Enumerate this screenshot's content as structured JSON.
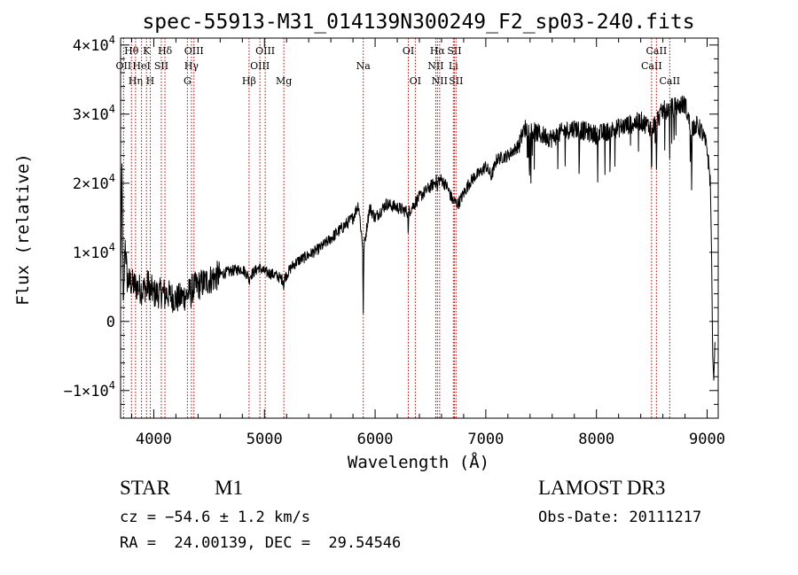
{
  "colors": {
    "axis": "#000000",
    "spectrum": "#000000",
    "line_marker": "#c00000",
    "background": "#ffffff"
  },
  "chart_data": {
    "type": "line",
    "title": "spec-55913-M31_014139N300249_F2_sp03-240.fits",
    "xlabel": "Wavelength (Å)",
    "ylabel": "Flux (relative)",
    "xlim": [
      3700,
      9100
    ],
    "ylim": [
      -14000,
      41000
    ],
    "x_ticks": [
      4000,
      5000,
      6000,
      7000,
      8000,
      9000
    ],
    "x_tick_labels": [
      "4000",
      "5000",
      "6000",
      "7000",
      "8000",
      "9000"
    ],
    "x_minor_step": 200,
    "y_ticks": [
      {
        "value": -10000,
        "mantissa": "−1×10",
        "exp": "4"
      },
      {
        "value": 0,
        "mantissa": "0",
        "exp": ""
      },
      {
        "value": 10000,
        "mantissa": "1×10",
        "exp": "4"
      },
      {
        "value": 20000,
        "mantissa": "2×10",
        "exp": "4"
      },
      {
        "value": 30000,
        "mantissa": "3×10",
        "exp": "4"
      },
      {
        "value": 40000,
        "mantissa": "4×10",
        "exp": "4"
      }
    ],
    "y_minor_step": 2000,
    "grid": false,
    "spectrum_anchors": [
      [
        3700,
        4000
      ],
      [
        3712,
        22000
      ],
      [
        3725,
        500
      ],
      [
        3740,
        12000
      ],
      [
        3760,
        6000
      ],
      [
        3800,
        5500
      ],
      [
        3850,
        5000
      ],
      [
        3900,
        4500
      ],
      [
        3950,
        5500
      ],
      [
        4000,
        4000
      ],
      [
        4100,
        4200
      ],
      [
        4200,
        3200
      ],
      [
        4300,
        3800
      ],
      [
        4350,
        4800
      ],
      [
        4400,
        5200
      ],
      [
        4500,
        6000
      ],
      [
        4600,
        6800
      ],
      [
        4700,
        7300
      ],
      [
        4800,
        7600
      ],
      [
        4860,
        6500
      ],
      [
        4950,
        7800
      ],
      [
        5000,
        7200
      ],
      [
        5100,
        6700
      ],
      [
        5170,
        6000
      ],
      [
        5250,
        8000
      ],
      [
        5300,
        8700
      ],
      [
        5400,
        9600
      ],
      [
        5500,
        10600
      ],
      [
        5600,
        12000
      ],
      [
        5700,
        13500
      ],
      [
        5800,
        15000
      ],
      [
        5850,
        17000
      ],
      [
        5893,
        10000
      ],
      [
        5950,
        16500
      ],
      [
        6000,
        15000
      ],
      [
        6100,
        17000
      ],
      [
        6200,
        16500
      ],
      [
        6300,
        15800
      ],
      [
        6400,
        18000
      ],
      [
        6500,
        19500
      ],
      [
        6563,
        20500
      ],
      [
        6600,
        20500
      ],
      [
        6650,
        19500
      ],
      [
        6700,
        17500
      ],
      [
        6750,
        17000
      ],
      [
        6800,
        18500
      ],
      [
        6850,
        20000
      ],
      [
        6900,
        21000
      ],
      [
        6950,
        21500
      ],
      [
        7000,
        22500
      ],
      [
        7050,
        21000
      ],
      [
        7100,
        23500
      ],
      [
        7200,
        24000
      ],
      [
        7300,
        25500
      ],
      [
        7350,
        28000
      ],
      [
        7500,
        27000
      ],
      [
        7600,
        26500
      ],
      [
        7700,
        27500
      ],
      [
        7800,
        28000
      ],
      [
        7900,
        27500
      ],
      [
        8000,
        27000
      ],
      [
        8100,
        27500
      ],
      [
        8200,
        28000
      ],
      [
        8300,
        28500
      ],
      [
        8400,
        29000
      ],
      [
        8500,
        28000
      ],
      [
        8600,
        30500
      ],
      [
        8700,
        31000
      ],
      [
        8800,
        31500
      ],
      [
        8850,
        28000
      ],
      [
        8900,
        28500
      ],
      [
        8950,
        27500
      ],
      [
        9000,
        25000
      ],
      [
        9030,
        20000
      ]
    ],
    "spectrum_dips": [
      [
        3934,
        1200
      ],
      [
        3968,
        1800
      ],
      [
        4101,
        1000
      ],
      [
        4340,
        1500
      ],
      [
        4861,
        900
      ],
      [
        5175,
        1200
      ],
      [
        5893,
        9000
      ],
      [
        6300,
        3500
      ],
      [
        6563,
        2000
      ],
      [
        8498,
        7000
      ],
      [
        8542,
        8000
      ],
      [
        8662,
        6000
      ],
      [
        8700,
        4000
      ],
      [
        8860,
        9000
      ]
    ],
    "spectrum_tail": [
      [
        9040,
        10000
      ],
      [
        9050,
        -5000
      ],
      [
        9060,
        -8500
      ],
      [
        9070,
        -3000
      ]
    ],
    "lines": [
      {
        "label": "OII",
        "x": 3727,
        "row": 1
      },
      {
        "label": "Hθ",
        "x": 3798,
        "row": 0
      },
      {
        "label": "Hη",
        "x": 3835,
        "row": 2
      },
      {
        "label": "HeI",
        "x": 3889,
        "row": 1
      },
      {
        "label": "K",
        "x": 3934,
        "row": 0
      },
      {
        "label": "H",
        "x": 3968,
        "row": 2
      },
      {
        "label": "SII",
        "x": 4068,
        "row": 1
      },
      {
        "label": "Hδ",
        "x": 4101,
        "row": 0
      },
      {
        "label": "G",
        "x": 4304,
        "row": 2
      },
      {
        "label": "Hγ",
        "x": 4340,
        "row": 1
      },
      {
        "label": "OIII",
        "x": 4363,
        "row": 0
      },
      {
        "label": "Hβ",
        "x": 4861,
        "row": 2
      },
      {
        "label": "OIII",
        "x": 4959,
        "row": 1
      },
      {
        "label": "OIII",
        "x": 5007,
        "row": 0
      },
      {
        "label": "Mg",
        "x": 5175,
        "row": 2
      },
      {
        "label": "Na",
        "x": 5893,
        "row": 1
      },
      {
        "label": "OI",
        "x": 6300,
        "row": 0
      },
      {
        "label": "OI",
        "x": 6363,
        "row": 2
      },
      {
        "label": "NII",
        "x": 6548,
        "row": 1
      },
      {
        "label": "Hα",
        "x": 6563,
        "row": 0
      },
      {
        "label": "NII",
        "x": 6583,
        "row": 2
      },
      {
        "label": "Li",
        "x": 6707,
        "row": 1
      },
      {
        "label": "SII",
        "x": 6716,
        "row": 0
      },
      {
        "label": "SII",
        "x": 6731,
        "row": 2
      },
      {
        "label": "CaII",
        "x": 8498,
        "row": 1
      },
      {
        "label": "CaII",
        "x": 8542,
        "row": 0
      },
      {
        "label": "CaII",
        "x": 8662,
        "row": 2
      }
    ]
  },
  "info": {
    "class": "STAR",
    "subclass": "M1",
    "survey": "LAMOST DR3",
    "cz": "cz = −54.6 ± 1.2 km/s",
    "obs_date": "Obs-Date: 20111217",
    "coords": "RA =  24.00139, DEC =  29.54546"
  }
}
